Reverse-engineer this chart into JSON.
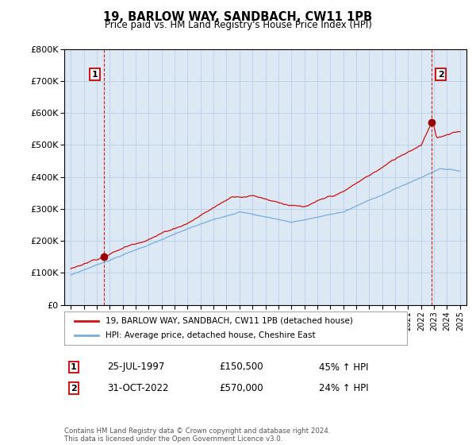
{
  "title": "19, BARLOW WAY, SANDBACH, CW11 1PB",
  "subtitle": "Price paid vs. HM Land Registry's House Price Index (HPI)",
  "legend_line1": "19, BARLOW WAY, SANDBACH, CW11 1PB (detached house)",
  "legend_line2": "HPI: Average price, detached house, Cheshire East",
  "footnote": "Contains HM Land Registry data © Crown copyright and database right 2024.\nThis data is licensed under the Open Government Licence v3.0.",
  "purchase1_date": "25-JUL-1997",
  "purchase1_price": "£150,500",
  "purchase1_hpi": "45% ↑ HPI",
  "purchase2_date": "31-OCT-2022",
  "purchase2_price": "£570,000",
  "purchase2_hpi": "24% ↑ HPI",
  "hpi_color": "#7aacdc",
  "price_color": "#cc1111",
  "marker_color": "#990000",
  "chart_bg": "#dde8f5",
  "fig_bg": "#ffffff",
  "grid_color": "#b8cfe8",
  "ylim": [
    0,
    800000
  ],
  "yticks": [
    0,
    100000,
    200000,
    300000,
    400000,
    500000,
    600000,
    700000,
    800000
  ],
  "ytick_labels": [
    "£0",
    "£100K",
    "£200K",
    "£300K",
    "£400K",
    "£500K",
    "£600K",
    "£700K",
    "£800K"
  ],
  "p1_x": 1997.57,
  "p1_y": 150500,
  "p2_x": 2022.83,
  "p2_y": 570000,
  "xmin": 1995,
  "xmax": 2025
}
